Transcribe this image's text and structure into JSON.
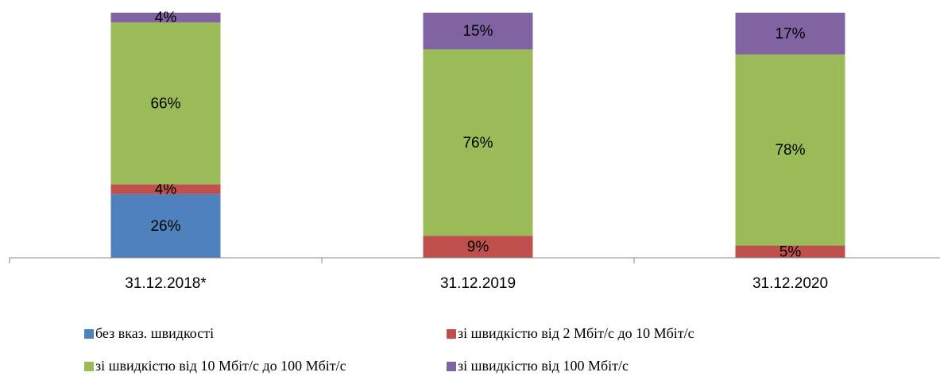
{
  "chart_data": {
    "type": "stacked_bar",
    "categories": [
      "31.12.2018*",
      "31.12.2019",
      "31.12.2020"
    ],
    "series": [
      {
        "name": "без вказ. швидкості",
        "color": "#4f81bd",
        "values": [
          26,
          0,
          0
        ],
        "value_labels": [
          "26%",
          null,
          null
        ]
      },
      {
        "name": "зі швидкістю від 2 Мбіт/с до 10 Мбіт/с",
        "color": "#c0504d",
        "values": [
          4,
          9,
          5
        ],
        "value_labels": [
          "4%",
          "9%",
          "5%"
        ]
      },
      {
        "name": "зі швидкістю від 10 Мбіт/с до 100 Мбіт/с",
        "color": "#9bbb59",
        "values": [
          66,
          76,
          78
        ],
        "value_labels": [
          "66%",
          "76%",
          "78%"
        ]
      },
      {
        "name": "зі швидкістю від 100 Мбіт/с",
        "color": "#8064a2",
        "values": [
          4,
          15,
          17
        ],
        "value_labels": [
          "4%",
          "15%",
          "17%"
        ]
      }
    ],
    "ylim": [
      0,
      100
    ]
  }
}
